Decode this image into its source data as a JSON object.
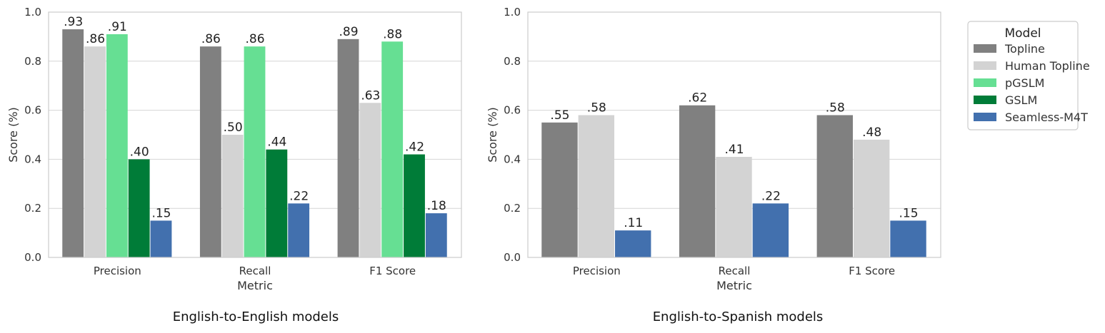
{
  "colors": {
    "Topline": "#808080",
    "Human Topline": "#d3d3d3",
    "pGSLM": "#66df93",
    "GSLM": "#007c38",
    "Seamless-M4T": "#4270ae",
    "grid": "#d6d6d6",
    "frame": "#cccccc"
  },
  "legend": {
    "title": "Model",
    "entries": [
      "Topline",
      "Human Topline",
      "pGSLM",
      "GSLM",
      "Seamless-M4T"
    ],
    "placement": "upper-right outside plot"
  },
  "chart_data": [
    {
      "type": "bar",
      "caption": "English-to-English models",
      "xlabel": "Metric",
      "ylabel": "Score (%)",
      "ylim": [
        0,
        1.0
      ],
      "yticks": [
        "0.0",
        "0.2",
        "0.4",
        "0.6",
        "0.8",
        "1.0"
      ],
      "grid": true,
      "categories": [
        "Precision",
        "Recall",
        "F1 Score"
      ],
      "series": [
        {
          "name": "Topline",
          "values": [
            0.93,
            0.86,
            0.89
          ],
          "labels": [
            ".93",
            ".86",
            ".89"
          ]
        },
        {
          "name": "Human Topline",
          "values": [
            0.86,
            0.5,
            0.63
          ],
          "labels": [
            ".86",
            ".50",
            ".63"
          ]
        },
        {
          "name": "pGSLM",
          "values": [
            0.91,
            0.86,
            0.88
          ],
          "labels": [
            ".91",
            ".86",
            ".88"
          ]
        },
        {
          "name": "GSLM",
          "values": [
            0.4,
            0.44,
            0.42
          ],
          "labels": [
            ".40",
            ".44",
            ".42"
          ]
        },
        {
          "name": "Seamless-M4T",
          "values": [
            0.15,
            0.22,
            0.18
          ],
          "labels": [
            ".15",
            ".22",
            ".18"
          ]
        }
      ]
    },
    {
      "type": "bar",
      "caption": "English-to-Spanish models",
      "xlabel": "Metric",
      "ylabel": "Score (%)",
      "ylim": [
        0,
        1.0
      ],
      "yticks": [
        "0.0",
        "0.2",
        "0.4",
        "0.6",
        "0.8",
        "1.0"
      ],
      "grid": true,
      "categories": [
        "Precision",
        "Recall",
        "F1 Score"
      ],
      "series": [
        {
          "name": "Topline",
          "values": [
            0.55,
            0.62,
            0.58
          ],
          "labels": [
            ".55",
            ".62",
            ".58"
          ]
        },
        {
          "name": "Human Topline",
          "values": [
            0.58,
            0.41,
            0.48
          ],
          "labels": [
            ".58",
            ".41",
            ".48"
          ]
        },
        {
          "name": "Seamless-M4T",
          "values": [
            0.11,
            0.22,
            0.15
          ],
          "labels": [
            ".11",
            ".22",
            ".15"
          ]
        }
      ]
    }
  ]
}
